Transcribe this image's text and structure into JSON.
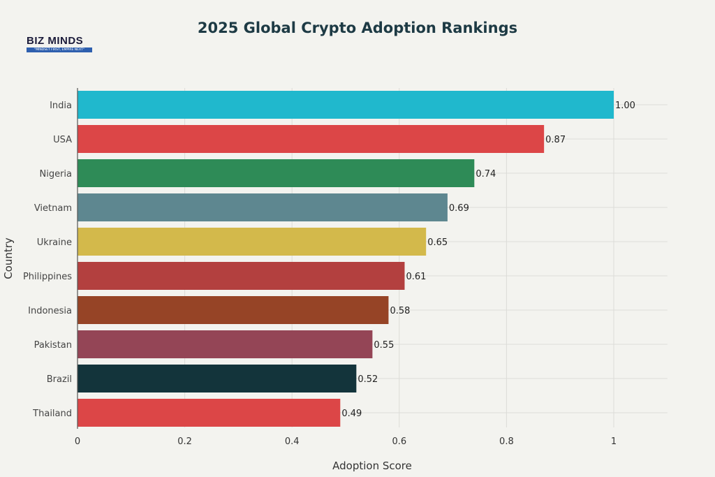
{
  "logo": {
    "name": "BIZ MINDS",
    "tagline": "\"MINDSET FIRST, EMPIRE NEXT\""
  },
  "chart_data": {
    "type": "bar",
    "orientation": "horizontal",
    "title": "2025 Global Crypto Adoption Rankings",
    "xlabel": "Adoption Score",
    "ylabel": "Country",
    "xlim": [
      0,
      1.1
    ],
    "xticks": [
      0,
      0.2,
      0.4,
      0.6,
      0.8,
      1
    ],
    "xtick_labels": [
      "0",
      "0.2",
      "0.4",
      "0.6",
      "0.8",
      "1"
    ],
    "grid": true,
    "categories": [
      "India",
      "USA",
      "Nigeria",
      "Vietnam",
      "Ukraine",
      "Philippines",
      "Indonesia",
      "Pakistan",
      "Brazil",
      "Thailand"
    ],
    "values": [
      1.0,
      0.87,
      0.74,
      0.69,
      0.65,
      0.61,
      0.58,
      0.55,
      0.52,
      0.49
    ],
    "data_labels": [
      "1.00",
      "0.87",
      "0.74",
      "0.69",
      "0.65",
      "0.61",
      "0.58",
      "0.55",
      "0.52",
      "0.49"
    ],
    "colors": [
      "#20b8cd",
      "#dc4647",
      "#2e8b57",
      "#5e8790",
      "#d3b94b",
      "#b3403f",
      "#964426",
      "#944556",
      "#13343b",
      "#dc4647"
    ]
  }
}
